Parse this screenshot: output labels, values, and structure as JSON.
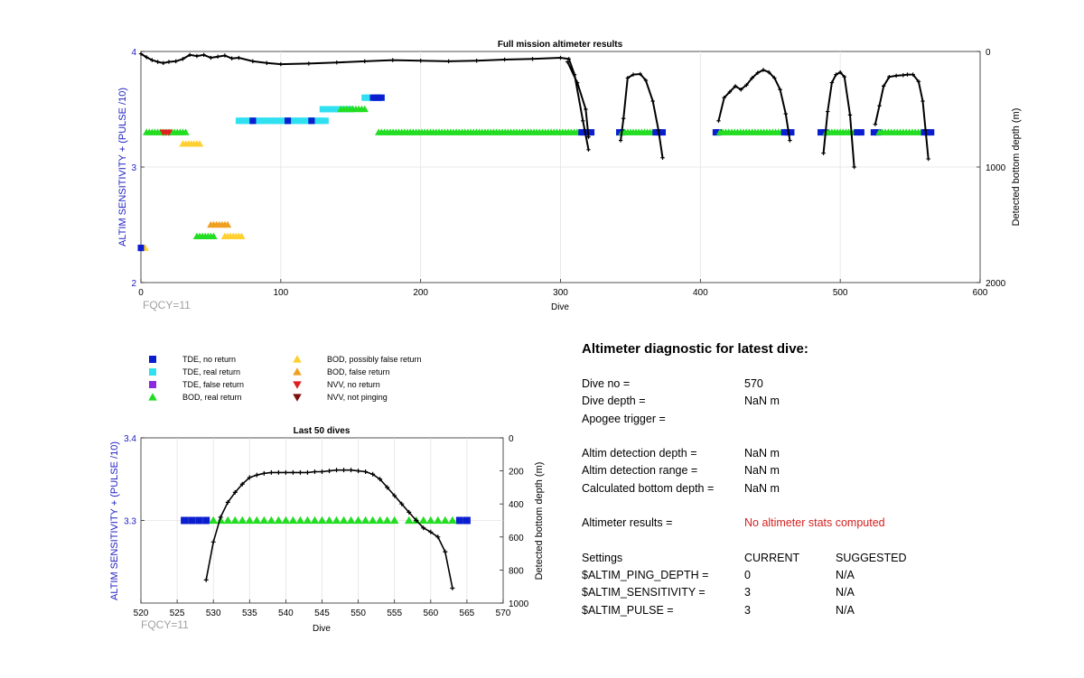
{
  "colors": {
    "tde_no_return": "#0a1ed0",
    "tde_real_return": "#2ee0f0",
    "tde_false_return": "#8a2be2",
    "bod_real_return": "#22dd22",
    "bod_possibly_false": "#ffd030",
    "bod_false": "#f0a020",
    "nvv_no_return": "#e02020",
    "nvv_not_pinging": "#801010",
    "depth_line": "#000000",
    "left_axis": "#2020c0",
    "fqcy": "#a0a0a0",
    "results_text": "#d42020"
  },
  "legend": [
    {
      "label": "TDE, no return",
      "symbol": "square",
      "color_key": "tde_no_return"
    },
    {
      "label": "TDE, real return",
      "symbol": "square",
      "color_key": "tde_real_return"
    },
    {
      "label": "TDE, false return",
      "symbol": "square",
      "color_key": "tde_false_return"
    },
    {
      "label": "BOD, real return",
      "symbol": "triangle-up",
      "color_key": "bod_real_return"
    },
    {
      "label": "BOD, possibly false return",
      "symbol": "triangle-up",
      "color_key": "bod_possibly_false"
    },
    {
      "label": "BOD, false return",
      "symbol": "triangle-up",
      "color_key": "bod_false"
    },
    {
      "label": "NVV, no return",
      "symbol": "triangle-down",
      "color_key": "nvv_no_return"
    },
    {
      "label": "NVV, not pinging",
      "symbol": "triangle-down",
      "color_key": "nvv_not_pinging"
    }
  ],
  "chart_data": [
    {
      "type": "scatter",
      "title": "Full mission altimeter results",
      "xlabel": "Dive",
      "ylabel": "ALTIM SENSITIVITY + (PULSE /10)",
      "ylabel_right": "Detected bottom depth (m)",
      "xlim": [
        0,
        600
      ],
      "ylim": [
        2,
        4
      ],
      "ylim_right_reversed": [
        0,
        2000
      ],
      "x_ticks": [
        0,
        100,
        200,
        300,
        400,
        500,
        600
      ],
      "y_ticks": [
        "2",
        "3",
        "4"
      ],
      "y_ticks_right": [
        "0",
        "1000",
        "2000"
      ],
      "grid": true,
      "annotation": "FQCY=11",
      "marker_runs": [
        {
          "series": "bod_possibly_false",
          "symbol": "triangle-up",
          "y": 2.3,
          "x_start": 1,
          "x_end": 3
        },
        {
          "series": "tde_no_return",
          "symbol": "square",
          "y": 2.3,
          "x_start": 0,
          "x_end": 0
        },
        {
          "series": "bod_real_return",
          "symbol": "triangle-up",
          "y": 2.4,
          "x_start": 40,
          "x_end": 52
        },
        {
          "series": "bod_possibly_false",
          "symbol": "triangle-up",
          "y": 2.4,
          "x_start": 60,
          "x_end": 72
        },
        {
          "series": "bod_false",
          "symbol": "triangle-up",
          "y": 2.5,
          "x_start": 50,
          "x_end": 62
        },
        {
          "series": "bod_possibly_false",
          "symbol": "triangle-up",
          "y": 3.2,
          "x_start": 30,
          "x_end": 42
        },
        {
          "series": "bod_real_return",
          "symbol": "triangle-up",
          "y": 3.3,
          "x_start": 4,
          "x_end": 32
        },
        {
          "series": "nvv_no_return",
          "symbol": "triangle-down",
          "y": 3.3,
          "x_start": 16,
          "x_end": 20
        },
        {
          "series": "tde_real_return",
          "symbol": "square",
          "y": 3.4,
          "x_start": 70,
          "x_end": 132
        },
        {
          "series": "tde_no_return",
          "symbol": "square",
          "y": 3.4,
          "x_start": 80,
          "x_end": 80
        },
        {
          "series": "tde_no_return",
          "symbol": "square",
          "y": 3.4,
          "x_start": 105,
          "x_end": 105
        },
        {
          "series": "tde_no_return",
          "symbol": "square",
          "y": 3.4,
          "x_start": 122,
          "x_end": 122
        },
        {
          "series": "tde_real_return",
          "symbol": "square",
          "y": 3.5,
          "x_start": 130,
          "x_end": 150
        },
        {
          "series": "bod_real_return",
          "symbol": "triangle-up",
          "y": 3.5,
          "x_start": 143,
          "x_end": 160
        },
        {
          "series": "tde_real_return",
          "symbol": "square",
          "y": 3.6,
          "x_start": 160,
          "x_end": 172
        },
        {
          "series": "tde_no_return",
          "symbol": "square",
          "y": 3.6,
          "x_start": 166,
          "x_end": 172
        },
        {
          "series": "bod_real_return",
          "symbol": "triangle-up",
          "y": 3.3,
          "x_start": 170,
          "x_end": 320
        },
        {
          "series": "tde_no_return",
          "symbol": "square",
          "y": 3.3,
          "x_start": 315,
          "x_end": 322
        },
        {
          "series": "tde_no_return",
          "symbol": "square",
          "y": 3.3,
          "x_start": 342,
          "x_end": 344
        },
        {
          "series": "bod_real_return",
          "symbol": "triangle-up",
          "y": 3.3,
          "x_start": 344,
          "x_end": 368
        },
        {
          "series": "tde_no_return",
          "symbol": "square",
          "y": 3.3,
          "x_start": 368,
          "x_end": 373
        },
        {
          "series": "tde_no_return",
          "symbol": "square",
          "y": 3.3,
          "x_start": 411,
          "x_end": 413
        },
        {
          "series": "bod_real_return",
          "symbol": "triangle-up",
          "y": 3.3,
          "x_start": 414,
          "x_end": 460
        },
        {
          "series": "tde_no_return",
          "symbol": "square",
          "y": 3.3,
          "x_start": 460,
          "x_end": 465
        },
        {
          "series": "tde_no_return",
          "symbol": "square",
          "y": 3.3,
          "x_start": 486,
          "x_end": 489
        },
        {
          "series": "bod_real_return",
          "symbol": "triangle-up",
          "y": 3.3,
          "x_start": 490,
          "x_end": 512
        },
        {
          "series": "tde_no_return",
          "symbol": "square",
          "y": 3.3,
          "x_start": 512,
          "x_end": 515
        },
        {
          "series": "tde_no_return",
          "symbol": "square",
          "y": 3.3,
          "x_start": 524,
          "x_end": 527
        },
        {
          "series": "bod_real_return",
          "symbol": "triangle-up",
          "y": 3.3,
          "x_start": 528,
          "x_end": 560
        },
        {
          "series": "tde_no_return",
          "symbol": "square",
          "y": 3.3,
          "x_start": 560,
          "x_end": 565
        }
      ],
      "depth_segments": [
        [
          [
            0,
            20
          ],
          [
            4,
            50
          ],
          [
            8,
            75
          ],
          [
            12,
            90
          ],
          [
            16,
            100
          ],
          [
            20,
            90
          ],
          [
            25,
            85
          ],
          [
            30,
            65
          ],
          [
            35,
            30
          ],
          [
            40,
            40
          ],
          [
            45,
            30
          ],
          [
            50,
            55
          ],
          [
            55,
            45
          ],
          [
            60,
            35
          ],
          [
            65,
            60
          ],
          [
            70,
            55
          ],
          [
            80,
            85
          ],
          [
            90,
            100
          ],
          [
            100,
            110
          ],
          [
            120,
            105
          ],
          [
            140,
            95
          ],
          [
            160,
            85
          ],
          [
            180,
            75
          ],
          [
            200,
            80
          ],
          [
            220,
            85
          ],
          [
            240,
            80
          ],
          [
            260,
            70
          ],
          [
            280,
            65
          ],
          [
            300,
            55
          ],
          [
            306,
            65
          ],
          [
            310,
            200
          ],
          [
            316,
            600
          ],
          [
            320,
            850
          ]
        ],
        [
          [
            305,
            90
          ],
          [
            312,
            270
          ],
          [
            318,
            500
          ],
          [
            320,
            740
          ]
        ],
        [
          [
            343,
            770
          ],
          [
            345,
            580
          ],
          [
            348,
            230
          ],
          [
            352,
            200
          ],
          [
            357,
            195
          ],
          [
            361,
            250
          ],
          [
            366,
            430
          ],
          [
            370,
            680
          ],
          [
            373,
            920
          ]
        ],
        [
          [
            413,
            600
          ],
          [
            417,
            400
          ],
          [
            421,
            350
          ],
          [
            425,
            300
          ],
          [
            429,
            330
          ],
          [
            433,
            290
          ],
          [
            437,
            230
          ],
          [
            441,
            185
          ],
          [
            445,
            160
          ],
          [
            449,
            180
          ],
          [
            453,
            230
          ],
          [
            457,
            330
          ],
          [
            461,
            540
          ],
          [
            464,
            770
          ]
        ],
        [
          [
            488,
            880
          ],
          [
            491,
            520
          ],
          [
            494,
            270
          ],
          [
            497,
            200
          ],
          [
            500,
            180
          ],
          [
            503,
            220
          ],
          [
            507,
            550
          ],
          [
            510,
            1000
          ]
        ],
        [
          [
            525,
            630
          ],
          [
            528,
            470
          ],
          [
            531,
            300
          ],
          [
            535,
            220
          ],
          [
            540,
            210
          ],
          [
            545,
            205
          ],
          [
            548,
            200
          ],
          [
            552,
            200
          ],
          [
            556,
            260
          ],
          [
            559,
            430
          ],
          [
            561,
            680
          ],
          [
            563,
            930
          ]
        ]
      ]
    },
    {
      "type": "scatter",
      "title": "Last 50 dives",
      "xlabel": "Dive",
      "ylabel": "ALTIM SENSITIVITY + (PULSE /10)",
      "ylabel_right": "Detected bottom depth (m)",
      "xlim": [
        520,
        570
      ],
      "ylim": [
        3.2,
        3.4
      ],
      "ylim_right_reversed": [
        0,
        1000
      ],
      "x_ticks": [
        520,
        525,
        530,
        535,
        540,
        545,
        550,
        555,
        560,
        565,
        570
      ],
      "y_ticks": [
        "3.3",
        "3.4"
      ],
      "y_ticks_right": [
        "0",
        "200",
        "400",
        "600",
        "800",
        "1000"
      ],
      "grid": true,
      "annotation": "FQCY=11",
      "markers": [
        {
          "series": "tde_no_return",
          "symbol": "square",
          "x": [
            526,
            527,
            528,
            529,
            564,
            565
          ],
          "y": 3.3
        },
        {
          "series": "bod_real_return",
          "symbol": "triangle-up",
          "x": [
            530,
            531,
            532,
            533,
            534,
            535,
            536,
            537,
            538,
            539,
            540,
            541,
            542,
            543,
            544,
            545,
            546,
            547,
            548,
            549,
            550,
            551,
            552,
            553,
            554,
            555,
            557,
            558,
            559,
            560,
            561,
            562,
            563
          ],
          "y": 3.3
        }
      ],
      "depth": {
        "x": [
          529,
          530,
          531,
          532,
          533,
          534,
          535,
          536,
          537,
          538,
          539,
          540,
          541,
          542,
          543,
          544,
          545,
          546,
          547,
          548,
          549,
          550,
          551,
          552,
          553,
          554,
          555,
          556,
          557,
          558,
          559,
          560,
          561,
          562,
          563
        ],
        "y": [
          860,
          630,
          480,
          390,
          330,
          280,
          240,
          225,
          215,
          210,
          210,
          210,
          210,
          210,
          210,
          205,
          205,
          200,
          195,
          195,
          195,
          200,
          205,
          220,
          250,
          300,
          350,
          400,
          450,
          500,
          545,
          570,
          600,
          690,
          910
        ]
      }
    }
  ],
  "diagnostic": {
    "title": "Altimeter diagnostic for latest dive:",
    "rows": [
      {
        "label": "Dive no =",
        "value": "570"
      },
      {
        "label": "Dive depth =",
        "value": "NaN m"
      },
      {
        "label": "Apogee trigger =",
        "value": ""
      },
      {
        "label": "Altim detection depth =",
        "value": "NaN m"
      },
      {
        "label": "Altim detection range =",
        "value": "NaN m"
      },
      {
        "label": "Calculated bottom depth =",
        "value": "NaN m"
      }
    ],
    "results_label": "Altimeter results =",
    "results_value": "No altimeter stats computed",
    "settings_header": {
      "label": "Settings",
      "current": "CURRENT",
      "suggested": "SUGGESTED"
    },
    "settings": [
      {
        "name": "$ALTIM_PING_DEPTH =",
        "current": "0",
        "suggested": "N/A"
      },
      {
        "name": "$ALTIM_SENSITIVITY =",
        "current": "3",
        "suggested": "N/A"
      },
      {
        "name": "$ALTIM_PULSE =",
        "current": "3",
        "suggested": "N/A"
      }
    ]
  }
}
